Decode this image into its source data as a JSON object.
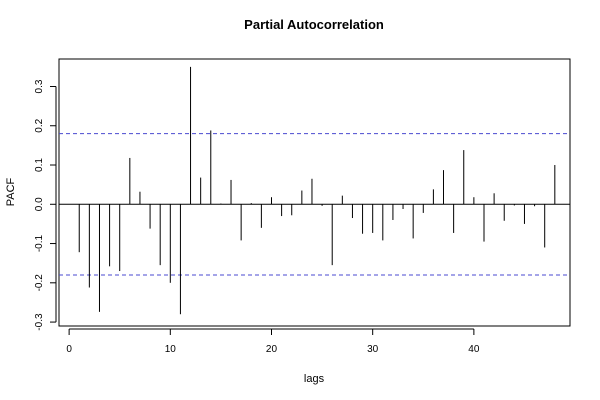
{
  "chart_data": {
    "type": "bar",
    "title": "Partial Autocorrelation",
    "xlabel": "lags",
    "ylabel": "PACF",
    "xlim": [
      -1,
      49.5
    ],
    "ylim": [
      -0.31,
      0.37
    ],
    "xticks": [
      0,
      10,
      20,
      30,
      40
    ],
    "yticks": [
      -0.3,
      -0.2,
      -0.1,
      0.0,
      0.1,
      0.2,
      0.3
    ],
    "ytick_labels": [
      "-0.3",
      "-0.2",
      "-0.1",
      "0.0",
      "0.1",
      "0.2",
      "0.3"
    ],
    "confidence_bounds": [
      0.18,
      -0.18
    ],
    "confidence_color": "#4a4ad0",
    "grid": false,
    "series": [
      {
        "x": [
          1,
          2,
          3,
          4,
          5,
          6,
          7,
          8,
          9,
          10,
          11,
          12,
          13,
          14,
          15,
          16,
          17,
          18,
          19,
          20,
          21,
          22,
          23,
          24,
          25,
          26,
          27,
          28,
          29,
          30,
          31,
          32,
          33,
          34,
          35,
          36,
          37,
          38,
          39,
          40,
          41,
          42,
          43,
          44,
          45,
          46,
          47,
          48
        ],
        "values": [
          -0.122,
          -0.212,
          -0.274,
          -0.158,
          -0.17,
          0.118,
          0.032,
          -0.062,
          -0.155,
          -0.2,
          -0.28,
          0.35,
          0.068,
          0.188,
          0.002,
          0.062,
          -0.092,
          0.003,
          -0.06,
          0.018,
          -0.03,
          -0.028,
          0.035,
          0.065,
          -0.004,
          -0.155,
          0.022,
          -0.035,
          -0.075,
          -0.073,
          -0.092,
          -0.04,
          -0.012,
          -0.087,
          -0.022,
          0.038,
          0.087,
          -0.073,
          0.138,
          0.018,
          -0.095,
          0.028,
          -0.042,
          -0.003,
          -0.05,
          -0.005,
          -0.11,
          0.1
        ]
      }
    ]
  }
}
